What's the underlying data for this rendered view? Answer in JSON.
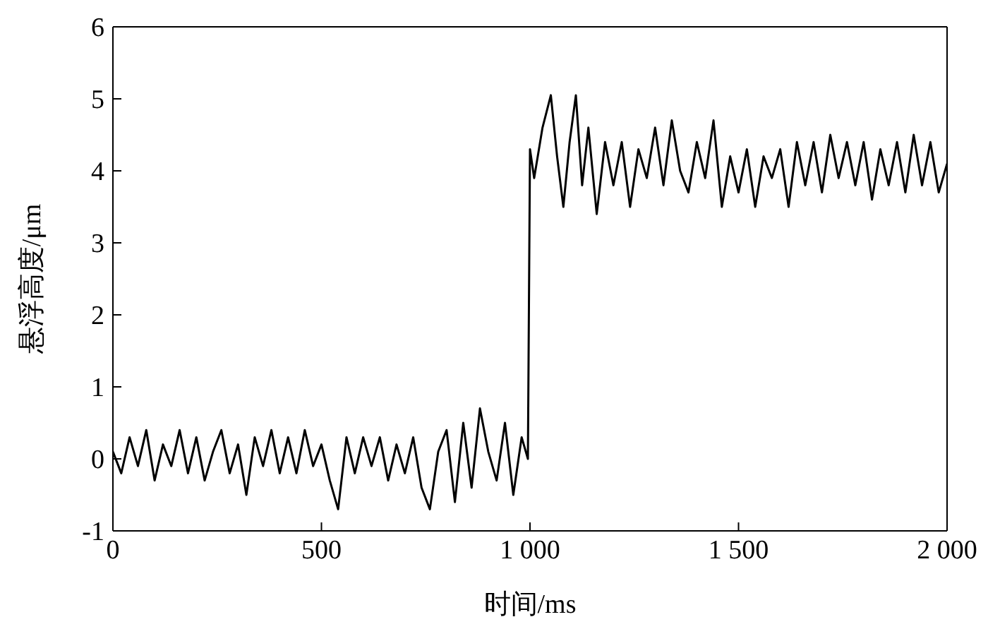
{
  "chart_data": {
    "type": "line",
    "xlabel": "时间/ms",
    "ylabel": "悬浮高度/μm",
    "x": [
      0,
      20,
      40,
      60,
      80,
      100,
      120,
      140,
      160,
      180,
      200,
      220,
      240,
      260,
      280,
      300,
      320,
      340,
      360,
      380,
      400,
      420,
      440,
      460,
      480,
      500,
      520,
      540,
      560,
      580,
      600,
      620,
      640,
      660,
      680,
      700,
      720,
      740,
      760,
      780,
      800,
      820,
      840,
      860,
      880,
      900,
      920,
      940,
      960,
      980,
      995,
      1000,
      1010,
      1030,
      1050,
      1065,
      1080,
      1095,
      1110,
      1125,
      1140,
      1160,
      1180,
      1200,
      1220,
      1240,
      1260,
      1280,
      1300,
      1320,
      1340,
      1360,
      1380,
      1400,
      1420,
      1440,
      1460,
      1480,
      1500,
      1520,
      1540,
      1560,
      1580,
      1600,
      1620,
      1640,
      1660,
      1680,
      1700,
      1720,
      1740,
      1760,
      1780,
      1800,
      1820,
      1840,
      1860,
      1880,
      1900,
      1920,
      1940,
      1960,
      1980,
      2000
    ],
    "series": [
      {
        "color": "#000000",
        "values": [
          0.1,
          -0.2,
          0.3,
          -0.1,
          0.4,
          -0.3,
          0.2,
          -0.1,
          0.4,
          -0.2,
          0.3,
          -0.3,
          0.1,
          0.4,
          -0.2,
          0.2,
          -0.5,
          0.3,
          -0.1,
          0.4,
          -0.2,
          0.3,
          -0.2,
          0.4,
          -0.1,
          0.2,
          -0.3,
          -0.7,
          0.3,
          -0.2,
          0.3,
          -0.1,
          0.3,
          -0.3,
          0.2,
          -0.2,
          0.3,
          -0.4,
          -0.7,
          0.1,
          0.4,
          -0.6,
          0.5,
          -0.4,
          0.7,
          0.1,
          -0.3,
          0.5,
          -0.5,
          0.3,
          0.0,
          4.3,
          3.9,
          4.6,
          5.05,
          4.2,
          3.5,
          4.4,
          5.05,
          3.8,
          4.6,
          3.4,
          4.4,
          3.8,
          4.4,
          3.5,
          4.3,
          3.9,
          4.6,
          3.8,
          4.7,
          4.0,
          3.7,
          4.4,
          3.9,
          4.7,
          3.5,
          4.2,
          3.7,
          4.3,
          3.5,
          4.2,
          3.9,
          4.3,
          3.5,
          4.4,
          3.8,
          4.4,
          3.7,
          4.5,
          3.9,
          4.4,
          3.8,
          4.4,
          3.6,
          4.3,
          3.8,
          4.4,
          3.7,
          4.5,
          3.8,
          4.4,
          3.7,
          4.1
        ]
      }
    ],
    "xlim": [
      0,
      2000
    ],
    "xticks": [
      0,
      500,
      {
        "value": 1000,
        "label": "1 000"
      },
      {
        "value": 1500,
        "label": "1 500"
      },
      {
        "value": 2000,
        "label": "2 000"
      }
    ],
    "ylim": [
      -1,
      6
    ],
    "yticks": [
      -1,
      0,
      1,
      2,
      3,
      4,
      5,
      6
    ],
    "grid": false,
    "legend": false,
    "marker": "none",
    "line_style": "solid"
  }
}
